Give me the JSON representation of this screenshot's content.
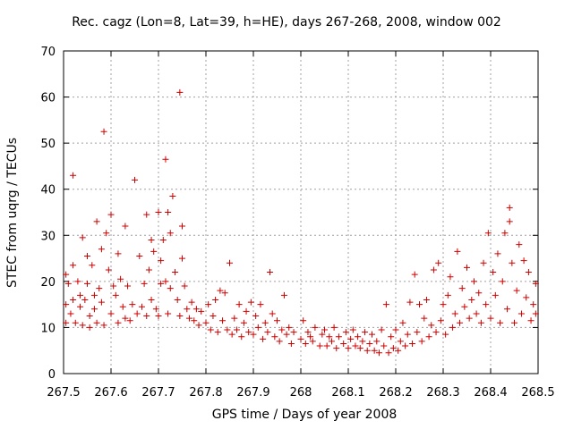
{
  "chart_data": {
    "type": "scatter",
    "title": "Rec. cagz (Lon=8, Lat=39, h=HE), days 267-268, 2008, window 002",
    "xlabel": "GPS time / Days of year 2008",
    "ylabel": "STEC from uqrg / TECUs",
    "xlim": [
      267.5,
      268.5
    ],
    "ylim": [
      0,
      70
    ],
    "xticks": [
      "267.5",
      "267.6",
      "267.7",
      "267.8",
      "267.9",
      "268",
      "268.1",
      "268.2",
      "268.3",
      "268.4",
      "268.5"
    ],
    "yticks": [
      "0",
      "10",
      "20",
      "30",
      "40",
      "50",
      "60",
      "70"
    ],
    "grid": true,
    "marker": "plus",
    "color": "#cc0000",
    "points": [
      [
        267.505,
        21.5
      ],
      [
        267.505,
        15
      ],
      [
        267.505,
        11
      ],
      [
        267.51,
        19.5
      ],
      [
        267.515,
        13
      ],
      [
        267.52,
        43
      ],
      [
        267.52,
        23.5
      ],
      [
        267.52,
        16
      ],
      [
        267.525,
        11
      ],
      [
        267.53,
        20
      ],
      [
        267.535,
        17
      ],
      [
        267.535,
        14.5
      ],
      [
        267.54,
        29.5
      ],
      [
        267.54,
        10.5
      ],
      [
        267.545,
        16
      ],
      [
        267.55,
        25.5
      ],
      [
        267.55,
        19.5
      ],
      [
        267.555,
        12.5
      ],
      [
        267.555,
        10
      ],
      [
        267.56,
        23.5
      ],
      [
        267.565,
        17
      ],
      [
        267.565,
        14
      ],
      [
        267.57,
        33
      ],
      [
        267.57,
        11
      ],
      [
        267.575,
        18.5
      ],
      [
        267.58,
        27
      ],
      [
        267.58,
        15.5
      ],
      [
        267.585,
        52.5
      ],
      [
        267.585,
        10.5
      ],
      [
        267.59,
        30.5
      ],
      [
        267.595,
        22.5
      ],
      [
        267.6,
        34.5
      ],
      [
        267.6,
        13
      ],
      [
        267.605,
        19
      ],
      [
        267.61,
        17
      ],
      [
        267.615,
        26
      ],
      [
        267.615,
        11
      ],
      [
        267.62,
        20.5
      ],
      [
        267.625,
        14.5
      ],
      [
        267.63,
        32
      ],
      [
        267.63,
        12
      ],
      [
        267.635,
        19
      ],
      [
        267.64,
        11.5
      ],
      [
        267.645,
        15
      ],
      [
        267.65,
        42
      ],
      [
        267.655,
        13
      ],
      [
        267.66,
        25.5
      ],
      [
        267.665,
        14.5
      ],
      [
        267.67,
        19.5
      ],
      [
        267.675,
        34.5
      ],
      [
        267.675,
        12.5
      ],
      [
        267.68,
        22.5
      ],
      [
        267.685,
        16
      ],
      [
        267.685,
        29
      ],
      [
        267.69,
        26.5
      ],
      [
        267.695,
        14
      ],
      [
        267.7,
        35
      ],
      [
        267.7,
        12.5
      ],
      [
        267.705,
        19.5
      ],
      [
        267.705,
        24.5
      ],
      [
        267.71,
        29
      ],
      [
        267.715,
        46.5
      ],
      [
        267.715,
        20
      ],
      [
        267.72,
        35
      ],
      [
        267.72,
        13
      ],
      [
        267.725,
        30.5
      ],
      [
        267.725,
        18.5
      ],
      [
        267.73,
        38.5
      ],
      [
        267.735,
        22
      ],
      [
        267.74,
        16
      ],
      [
        267.745,
        61
      ],
      [
        267.745,
        12.5
      ],
      [
        267.75,
        25
      ],
      [
        267.75,
        32
      ],
      [
        267.755,
        19
      ],
      [
        267.76,
        14
      ],
      [
        267.765,
        12
      ],
      [
        267.77,
        15.5
      ],
      [
        267.775,
        11.5
      ],
      [
        267.78,
        14
      ],
      [
        267.785,
        10.5
      ],
      [
        267.79,
        13.5
      ],
      [
        267.8,
        11
      ],
      [
        267.805,
        15
      ],
      [
        267.81,
        9.5
      ],
      [
        267.815,
        12.5
      ],
      [
        267.82,
        16
      ],
      [
        267.825,
        9
      ],
      [
        267.83,
        18
      ],
      [
        267.835,
        11.5
      ],
      [
        267.84,
        17.5
      ],
      [
        267.845,
        9.5
      ],
      [
        267.85,
        24
      ],
      [
        267.855,
        8.5
      ],
      [
        267.86,
        12
      ],
      [
        267.865,
        9.5
      ],
      [
        267.87,
        15
      ],
      [
        267.875,
        8
      ],
      [
        267.88,
        11
      ],
      [
        267.885,
        13.5
      ],
      [
        267.89,
        9
      ],
      [
        267.895,
        15.5
      ],
      [
        267.9,
        8.5
      ],
      [
        267.905,
        12.5
      ],
      [
        267.91,
        10
      ],
      [
        267.915,
        15
      ],
      [
        267.92,
        7.5
      ],
      [
        267.925,
        11
      ],
      [
        267.93,
        9
      ],
      [
        267.935,
        22
      ],
      [
        267.94,
        13
      ],
      [
        267.945,
        8
      ],
      [
        267.95,
        11.5
      ],
      [
        267.955,
        7
      ],
      [
        267.96,
        9.5
      ],
      [
        267.965,
        17
      ],
      [
        267.97,
        8.5
      ],
      [
        267.975,
        10
      ],
      [
        267.98,
        6.5
      ],
      [
        267.985,
        9
      ],
      [
        268.0,
        7.5
      ],
      [
        268.005,
        11.5
      ],
      [
        268.01,
        6.5
      ],
      [
        268.015,
        9
      ],
      [
        268.02,
        8
      ],
      [
        268.025,
        7
      ],
      [
        268.03,
        10
      ],
      [
        268.04,
        6
      ],
      [
        268.045,
        8.5
      ],
      [
        268.05,
        9.5
      ],
      [
        268.055,
        6
      ],
      [
        268.06,
        8
      ],
      [
        268.065,
        7
      ],
      [
        268.07,
        10
      ],
      [
        268.075,
        5.5
      ],
      [
        268.08,
        8
      ],
      [
        268.09,
        6.5
      ],
      [
        268.095,
        9
      ],
      [
        268.1,
        5.5
      ],
      [
        268.105,
        7.5
      ],
      [
        268.11,
        9.5
      ],
      [
        268.115,
        6
      ],
      [
        268.12,
        8
      ],
      [
        268.125,
        5.5
      ],
      [
        268.13,
        7
      ],
      [
        268.135,
        9
      ],
      [
        268.14,
        5
      ],
      [
        268.145,
        6.5
      ],
      [
        268.15,
        8.5
      ],
      [
        268.155,
        5
      ],
      [
        268.16,
        7
      ],
      [
        268.165,
        4.5
      ],
      [
        268.17,
        9.5
      ],
      [
        268.175,
        6
      ],
      [
        268.18,
        15
      ],
      [
        268.185,
        4.5
      ],
      [
        268.19,
        8
      ],
      [
        268.195,
        5.5
      ],
      [
        268.2,
        9.5
      ],
      [
        268.205,
        5
      ],
      [
        268.21,
        7
      ],
      [
        268.215,
        11
      ],
      [
        268.22,
        6
      ],
      [
        268.225,
        8.5
      ],
      [
        268.23,
        15.5
      ],
      [
        268.235,
        6.5
      ],
      [
        268.24,
        21.5
      ],
      [
        268.245,
        9
      ],
      [
        268.25,
        15
      ],
      [
        268.255,
        7
      ],
      [
        268.26,
        12
      ],
      [
        268.265,
        16
      ],
      [
        268.27,
        8
      ],
      [
        268.275,
        10.5
      ],
      [
        268.28,
        22.5
      ],
      [
        268.285,
        9
      ],
      [
        268.29,
        24
      ],
      [
        268.295,
        11.5
      ],
      [
        268.3,
        15
      ],
      [
        268.305,
        8.5
      ],
      [
        268.31,
        17
      ],
      [
        268.315,
        21
      ],
      [
        268.32,
        10
      ],
      [
        268.325,
        13
      ],
      [
        268.33,
        26.5
      ],
      [
        268.335,
        11
      ],
      [
        268.34,
        18.5
      ],
      [
        268.345,
        14.5
      ],
      [
        268.35,
        23
      ],
      [
        268.355,
        12
      ],
      [
        268.36,
        16
      ],
      [
        268.365,
        20
      ],
      [
        268.37,
        13
      ],
      [
        268.375,
        17.5
      ],
      [
        268.38,
        11
      ],
      [
        268.385,
        24
      ],
      [
        268.39,
        15
      ],
      [
        268.395,
        30.5
      ],
      [
        268.4,
        12
      ],
      [
        268.405,
        22
      ],
      [
        268.41,
        17
      ],
      [
        268.415,
        26
      ],
      [
        268.42,
        11
      ],
      [
        268.425,
        20
      ],
      [
        268.43,
        30.5
      ],
      [
        268.435,
        14
      ],
      [
        268.44,
        36
      ],
      [
        268.44,
        33
      ],
      [
        268.445,
        24
      ],
      [
        268.45,
        11
      ],
      [
        268.455,
        18
      ],
      [
        268.46,
        28
      ],
      [
        268.465,
        13
      ],
      [
        268.47,
        24.5
      ],
      [
        268.475,
        16.5
      ],
      [
        268.48,
        22
      ],
      [
        268.485,
        11.5
      ],
      [
        268.49,
        15
      ],
      [
        268.495,
        19.5
      ],
      [
        268.495,
        13
      ]
    ]
  }
}
